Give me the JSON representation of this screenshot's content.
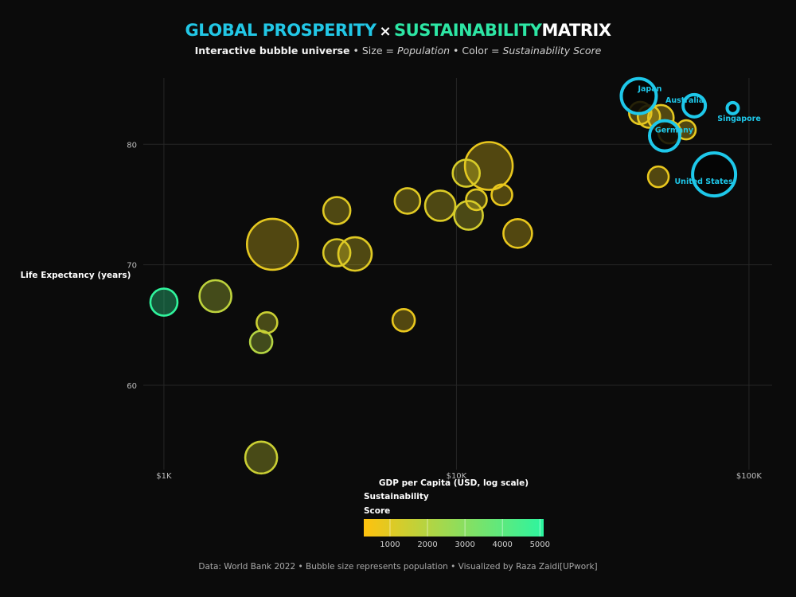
{
  "title": {
    "part1": "GLOBAL PROSPERITY",
    "sep": "×",
    "part2": "SUSTAINABILITY",
    "part3": "MATRIX"
  },
  "subtitle": {
    "bold": "Interactive bubble universe",
    "dot1": " • Size = ",
    "size_var": "Population",
    "dot2": " • Color = ",
    "color_var": "Sustainability Score"
  },
  "footer": "Data: World Bank 2022 • Bubble size represents population • Visualized by Raza Zaidi[UPwork]",
  "colors": {
    "low": "#ffc20e",
    "high": "#2cf5a0",
    "highlight": "#1ec8ea",
    "background": "#0b0b0b"
  },
  "chart_data": {
    "type": "scatter",
    "xlabel": "GDP per Capita (USD, log scale)",
    "ylabel": "Life Expectancy (years)",
    "x_scale": "log",
    "xlim": [
      850,
      120000
    ],
    "ylim": [
      53,
      85.5
    ],
    "x_ticks": [
      {
        "value": 1000,
        "label": "$1K"
      },
      {
        "value": 10000,
        "label": "$10K"
      },
      {
        "value": 100000,
        "label": "$100K"
      }
    ],
    "y_ticks": [
      {
        "value": 60,
        "label": "60"
      },
      {
        "value": 70,
        "label": "70"
      },
      {
        "value": 80,
        "label": "80"
      }
    ],
    "grid": true,
    "size_variable": "Population",
    "color_variable": "Sustainability Score",
    "colorbar": {
      "title_line1": "Sustainability",
      "title_line2": "Score",
      "min": 300,
      "max": 5100,
      "ticks": [
        1000,
        2000,
        3000,
        4000,
        5000
      ]
    },
    "points": [
      {
        "gdp": 1000,
        "life": 66.9,
        "r": 17,
        "score": 5000
      },
      {
        "gdp": 1500,
        "life": 67.4,
        "r": 20,
        "score": 1800
      },
      {
        "gdp": 2350,
        "life": 71.7,
        "r": 32,
        "score": 900
      },
      {
        "gdp": 2250,
        "life": 65.2,
        "r": 13,
        "score": 1500
      },
      {
        "gdp": 2150,
        "life": 63.6,
        "r": 14,
        "score": 2000
      },
      {
        "gdp": 2150,
        "life": 54.0,
        "r": 20,
        "score": 1500
      },
      {
        "gdp": 3900,
        "life": 74.5,
        "r": 17,
        "score": 1000
      },
      {
        "gdp": 3900,
        "life": 71.0,
        "r": 17,
        "score": 1100
      },
      {
        "gdp": 4500,
        "life": 70.9,
        "r": 21,
        "score": 1000
      },
      {
        "gdp": 6600,
        "life": 65.4,
        "r": 14,
        "score": 800
      },
      {
        "gdp": 6800,
        "life": 75.3,
        "r": 16,
        "score": 1000
      },
      {
        "gdp": 8800,
        "life": 74.9,
        "r": 19,
        "score": 1100
      },
      {
        "gdp": 10800,
        "life": 77.6,
        "r": 17,
        "score": 1200
      },
      {
        "gdp": 11000,
        "life": 74.1,
        "r": 18,
        "score": 1300
      },
      {
        "gdp": 11700,
        "life": 75.4,
        "r": 13,
        "score": 1000
      },
      {
        "gdp": 12900,
        "life": 78.2,
        "r": 30,
        "score": 800
      },
      {
        "gdp": 14300,
        "life": 75.8,
        "r": 13,
        "score": 800
      },
      {
        "gdp": 16200,
        "life": 72.6,
        "r": 18,
        "score": 800
      },
      {
        "gdp": 42500,
        "life": 82.6,
        "r": 14,
        "score": 900
      },
      {
        "gdp": 45500,
        "life": 82.3,
        "r": 14,
        "score": 900
      },
      {
        "gdp": 49000,
        "life": 77.3,
        "r": 13,
        "score": 800
      },
      {
        "gdp": 50000,
        "life": 82.2,
        "r": 16,
        "score": 900
      },
      {
        "gdp": 53500,
        "life": 81.0,
        "r": 14,
        "score": 900
      },
      {
        "gdp": 61000,
        "life": 81.2,
        "r": 12,
        "score": 900
      }
    ],
    "highlighted": [
      {
        "name": "Japan",
        "gdp": 42000,
        "life": 84.0,
        "r": 22
      },
      {
        "name": "Australia",
        "gdp": 65000,
        "life": 83.2,
        "r": 14
      },
      {
        "name": "Singapore",
        "gdp": 88000,
        "life": 83.0,
        "r": 7
      },
      {
        "name": "Germany",
        "gdp": 51500,
        "life": 80.7,
        "r": 19
      },
      {
        "name": "United States",
        "gdp": 76000,
        "life": 77.5,
        "r": 27
      }
    ]
  }
}
